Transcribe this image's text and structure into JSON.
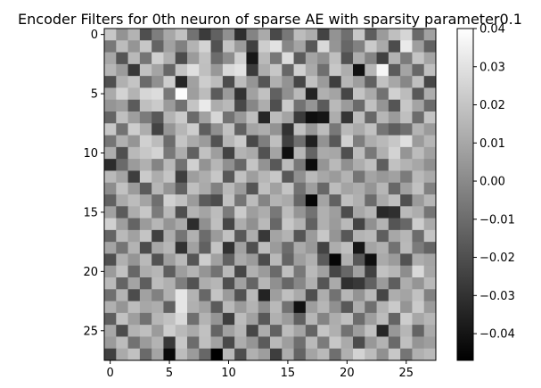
{
  "chart_data": {
    "type": "heatmap",
    "title": "Encoder Filters for 0th neuron of sparse AE with sparsity parameter0.1",
    "xlabel": "",
    "ylabel": "",
    "rows": 28,
    "cols": 28,
    "cmap": "gray",
    "vmin": -0.047,
    "vmax": 0.04,
    "x_ticks": [
      0,
      5,
      10,
      15,
      20,
      25
    ],
    "y_ticks": [
      0,
      5,
      10,
      15,
      20,
      25
    ],
    "colorbar_ticks": [
      "0.04",
      "0.03",
      "0.02",
      "0.01",
      "0.00",
      "−0.01",
      "−0.02",
      "−0.03",
      "−0.04"
    ],
    "colorbar_values": [
      0.04,
      0.03,
      0.02,
      0.01,
      0.0,
      -0.01,
      -0.02,
      -0.03,
      -0.04
    ],
    "values": [
      [
        0.021,
        0.003,
        0.014,
        -0.02,
        -0.004,
        0.01,
        0.019,
        -0.008,
        -0.027,
        -0.014,
        0.002,
        -0.031,
        -0.002,
        0.011,
        -0.022,
        -0.006,
        0.017,
        0.012,
        -0.024,
        0.003,
        -0.009,
        0.021,
        -0.015,
        0.006,
        0.018,
        0.026,
        -0.011,
        0.008
      ],
      [
        -0.006,
        0.017,
        0.004,
        0.021,
        -0.013,
        0.008,
        -0.003,
        0.014,
        0.025,
        -0.019,
        0.02,
        0.006,
        -0.025,
        0.023,
        0.03,
        -0.001,
        0.009,
        -0.017,
        0.027,
        0.004,
        -0.012,
        -0.003,
        0.022,
        0.011,
        -0.021,
        0.033,
        0.007,
        -0.014
      ],
      [
        0.01,
        -0.018,
        0.016,
        -0.007,
        0.024,
        0.013,
        -0.021,
        0.006,
        0.019,
        -0.01,
        0.001,
        0.024,
        -0.039,
        0.016,
        -0.006,
        0.028,
        -0.016,
        0.009,
        0.002,
        0.018,
        -0.019,
        0.012,
        -0.002,
        -0.025,
        0.014,
        -0.005,
        0.02,
        0.009
      ],
      [
        0.015,
        0.006,
        -0.028,
        0.019,
        0.009,
        -0.012,
        0.02,
        0.029,
        0.018,
        0.005,
        0.027,
        0.03,
        -0.027,
        0.012,
        0.021,
        -0.012,
        0.024,
        0.011,
        -0.009,
        0.021,
        0.012,
        -0.041,
        0.015,
        0.037,
        -0.016,
        0.009,
        -0.012,
        0.018
      ],
      [
        -0.02,
        0.013,
        0.02,
        -0.011,
        0.002,
        0.023,
        -0.034,
        0.008,
        0.023,
        0.017,
        -0.021,
        0.017,
        0.004,
        -0.018,
        0.013,
        0.003,
        -0.023,
        0.019,
        0.006,
        -0.026,
        0.015,
        0.007,
        -0.014,
        0.019,
        0.01,
        -0.001,
        0.018,
        -0.023
      ],
      [
        0.011,
        0.025,
        0.014,
        0.026,
        0.028,
        -0.006,
        0.039,
        0.007,
        0.017,
        -0.016,
        0.006,
        -0.03,
        0.008,
        0.019,
        -0.014,
        0.002,
        0.016,
        -0.035,
        0.013,
        0.009,
        -0.023,
        0.02,
        0.011,
        -0.008,
        0.024,
        0.017,
        -0.017,
        0.012
      ],
      [
        0.004,
        0.007,
        -0.016,
        0.018,
        0.022,
        0.006,
        -0.008,
        0.02,
        0.033,
        0.012,
        0.016,
        -0.022,
        -0.001,
        0.012,
        -0.02,
        0.022,
        -0.008,
        0.004,
        -0.016,
        0.016,
        0.006,
        -0.011,
        0.019,
        0.004,
        -0.018,
        0.021,
        0.009,
        -0.011
      ],
      [
        -0.013,
        0.018,
        0.007,
        -0.005,
        -0.017,
        0.014,
        0.022,
        -0.011,
        0.008,
        0.026,
        -0.008,
        0.005,
        0.018,
        -0.034,
        0.017,
        0.009,
        -0.027,
        -0.042,
        -0.04,
        0.012,
        -0.029,
        0.017,
        -0.012,
        0.015,
        0.006,
        0.018,
        -0.01,
        0.02
      ],
      [
        0.021,
        -0.008,
        0.023,
        0.012,
        -0.024,
        0.004,
        0.015,
        0.023,
        -0.015,
        0.002,
        0.019,
        -0.014,
        0.009,
        0.012,
        0.003,
        -0.03,
        0.019,
        0.005,
        0.017,
        -0.006,
        0.016,
        0.011,
        0.019,
        -0.007,
        -0.015,
        -0.009,
        0.014,
        0.006
      ],
      [
        -0.007,
        0.013,
        0.004,
        0.024,
        0.017,
        -0.01,
        0.02,
        0.011,
        0.006,
        -0.019,
        0.015,
        0.022,
        -0.022,
        -0.004,
        0.018,
        -0.025,
        -0.009,
        -0.036,
        0.003,
        -0.017,
        0.024,
        -0.004,
        0.012,
        0.016,
        0.021,
        0.029,
        0.006,
        0.015
      ],
      [
        0.012,
        -0.02,
        0.016,
        0.021,
        0.025,
        -0.006,
        0.012,
        -0.014,
        0.019,
        0.007,
        -0.024,
        0.014,
        0.011,
        -0.019,
        0.009,
        -0.042,
        0.015,
        -0.013,
        0.011,
        0.01,
        -0.02,
        0.017,
        -0.006,
        0.013,
        0.025,
        0.004,
        0.017,
        0.008
      ],
      [
        -0.032,
        -0.011,
        0.006,
        0.013,
        -0.002,
        0.016,
        -0.008,
        0.024,
        0.003,
        0.015,
        0.002,
        -0.012,
        0.02,
        0.003,
        -0.017,
        0.017,
        -0.006,
        -0.043,
        0.004,
        0.016,
        0.002,
        0.012,
        0.018,
        -0.015,
        0.019,
        0.014,
        0.01,
        0.002
      ],
      [
        0.016,
        0.009,
        -0.026,
        0.022,
        0.012,
        0.02,
        -0.026,
        0.007,
        0.012,
        0.021,
        -0.017,
        0.019,
        0.007,
        0.015,
        0.021,
        -0.017,
        0.002,
        0.016,
        0.01,
        0.006,
        0.014,
        -0.007,
        0.009,
        0.005,
        0.008,
        -0.005,
        0.016,
        0.011
      ],
      [
        0.001,
        0.019,
        0.006,
        -0.016,
        0.015,
        0.004,
        -0.014,
        0.018,
        0.011,
        -0.003,
        0.016,
        0.006,
        -0.018,
        0.018,
        0.008,
        0.02,
        -0.008,
        0.007,
        -0.012,
        0.017,
        0.009,
        0.012,
        0.004,
        0.015,
        -0.012,
        0.008,
        0.019,
        -0.003
      ],
      [
        -0.014,
        0.011,
        0.017,
        0.009,
        -0.009,
        0.024,
        0.019,
        0.006,
        -0.016,
        -0.021,
        0.019,
        -0.007,
        0.017,
        -0.002,
        0.014,
        0.011,
        -0.012,
        -0.045,
        0.009,
        -0.014,
        0.018,
        0.013,
        -0.01,
        0.011,
        0.018,
        -0.02,
        0.006,
        0.015
      ],
      [
        0.008,
        -0.016,
        0.012,
        0.021,
        -0.005,
        0.016,
        -0.02,
        0.014,
        0.009,
        0.017,
        -0.005,
        0.022,
        0.007,
        0.012,
        -0.006,
        0.017,
        0.004,
        -0.008,
        0.013,
        0.007,
        -0.021,
        0.01,
        0.015,
        -0.033,
        -0.031,
        0.016,
        0.012,
        -0.007
      ],
      [
        0.024,
        0.007,
        -0.013,
        0.006,
        0.015,
        0.004,
        0.011,
        -0.032,
        0.002,
        0.018,
        -0.023,
        0.012,
        0.002,
        0.016,
        -0.012,
        0.021,
        0.014,
        -0.014,
        0.013,
        0.006,
        0.016,
        -0.024,
        0.002,
        0.014,
        -0.018,
        -0.012,
        0.023,
        0.011
      ],
      [
        -0.013,
        0.016,
        0.008,
        0.02,
        -0.025,
        0.012,
        -0.007,
        0.013,
        -0.01,
        0.006,
        0.019,
        -0.017,
        0.012,
        -0.028,
        0.009,
        0.014,
        -0.018,
        0.006,
        0.021,
        0.004,
        -0.017,
        0.014,
        0.016,
        -0.015,
        0.01,
        0.015,
        -0.01,
        0.02
      ],
      [
        0.009,
        -0.007,
        0.014,
        -0.021,
        0.01,
        0.015,
        -0.03,
        0.008,
        -0.014,
        0.02,
        -0.03,
        0.008,
        -0.02,
        0.017,
        0.006,
        -0.01,
        0.011,
        0.005,
        -0.024,
        0.012,
        0.018,
        -0.039,
        0.009,
        0.013,
        -0.008,
        0.016,
        -0.005,
        -0.013
      ],
      [
        -0.02,
        0.013,
        0.004,
        0.016,
        -0.019,
        0.007,
        0.016,
        -0.018,
        0.023,
        0.008,
        -0.014,
        0.011,
        0.006,
        -0.021,
        0.016,
        -0.013,
        0.007,
        0.013,
        -0.016,
        -0.045,
        0.013,
        -0.017,
        -0.042,
        0.011,
        0.006,
        -0.019,
        0.012,
        0.009
      ],
      [
        0.006,
        0.019,
        -0.012,
        0.012,
        0.015,
        -0.015,
        0.007,
        0.014,
        0.004,
        -0.008,
        0.016,
        -0.023,
        0.013,
        0.006,
        -0.011,
        0.018,
        -0.006,
        0.016,
        0.008,
        -0.023,
        -0.012,
        0.008,
        -0.025,
        0.019,
        0.015,
        0.001,
        0.027,
        0.01
      ],
      [
        0.016,
        -0.013,
        0.009,
        -0.015,
        0.017,
        0.013,
        -0.004,
        -0.019,
        0.012,
        0.015,
        -0.02,
        0.008,
        -0.013,
        0.015,
        0.002,
        -0.012,
        -0.001,
        0.013,
        -0.018,
        0.011,
        -0.031,
        -0.028,
        -0.014,
        0.006,
        -0.015,
        0.012,
        0.004,
        0.016
      ],
      [
        -0.009,
        0.014,
        -0.021,
        0.008,
        -0.003,
        0.013,
        0.031,
        0.014,
        -0.012,
        0.02,
        0.006,
        -0.019,
        0.016,
        -0.035,
        0.007,
        0.018,
        0.011,
        -0.02,
        0.012,
        -0.008,
        0.015,
        0.003,
        0.016,
        -0.023,
        0.012,
        0.009,
        0.019,
        -0.003
      ],
      [
        0.013,
        0.004,
        0.017,
        0.01,
        0.012,
        -0.014,
        0.031,
        0.013,
        0.008,
        -0.016,
        0.016,
        0.006,
        0.014,
        0.001,
        0.016,
        -0.008,
        -0.041,
        0.007,
        0.015,
        0.002,
        -0.017,
        0.012,
        -0.009,
        0.014,
        0.022,
        0.004,
        0.022,
        0.006
      ],
      [
        -0.015,
        0.019,
        0.007,
        -0.008,
        0.015,
        0.019,
        0.027,
        -0.009,
        0.014,
        0.004,
        -0.026,
        0.017,
        0.008,
        -0.017,
        0.013,
        0.006,
        -0.014,
        0.015,
        -0.002,
        0.012,
        0.018,
        -0.01,
        0.007,
        0.017,
        -0.013,
        0.023,
        0.01,
        0.015
      ],
      [
        0.01,
        -0.021,
        0.014,
        0.018,
        0.006,
        0.023,
        0.016,
        0.011,
        0.019,
        -0.013,
        0.008,
        0.015,
        -0.023,
        0.012,
        -0.014,
        0.017,
        0.009,
        -0.013,
        0.02,
        0.013,
        -0.008,
        0.007,
        0.019,
        -0.034,
        0.005,
        0.015,
        -0.013,
        0.011
      ],
      [
        0.006,
        0.017,
        -0.008,
        0.006,
        0.014,
        -0.028,
        0.021,
        -0.01,
        0.018,
        0.008,
        -0.022,
        0.012,
        0.004,
        -0.016,
        0.016,
        0.007,
        -0.009,
        0.016,
        -0.005,
        0.021,
        0.011,
        -0.021,
        0.005,
        0.014,
        -0.011,
        0.018,
        0.004,
        0.007
      ],
      [
        -0.025,
        0.011,
        0.019,
        -0.011,
        0.009,
        -0.044,
        0.017,
        0.006,
        -0.012,
        -0.047,
        0.016,
        -0.02,
        0.013,
        0.007,
        -0.026,
        0.012,
        -0.013,
        0.009,
        0.016,
        -0.009,
        0.013,
        0.025,
        0.017,
        0.002,
        0.021,
        -0.007,
        0.013,
        0.016
      ]
    ]
  }
}
